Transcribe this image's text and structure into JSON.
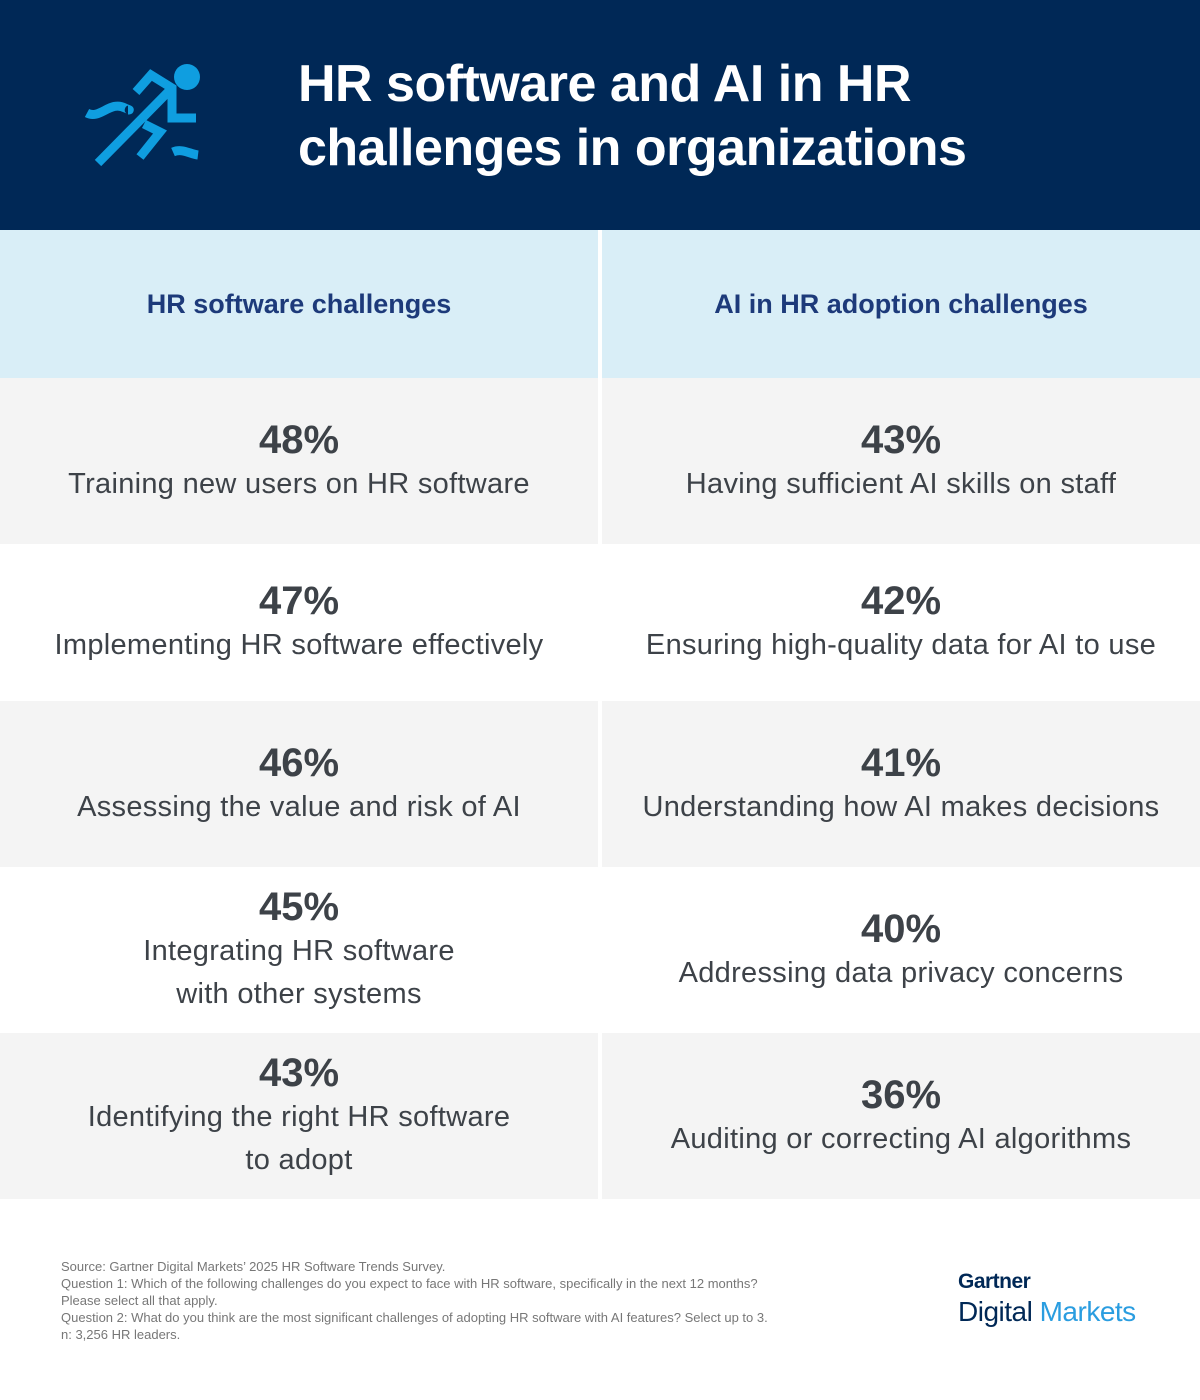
{
  "header": {
    "title_line1": "HR software and AI in HR",
    "title_line2": "challenges in organizations",
    "icon": "running-person-icon",
    "bg": "#002856",
    "accent": "#0f9ee0"
  },
  "columns": [
    "HR software challenges",
    "AI in HR adoption challenges"
  ],
  "rows": [
    [
      {
        "pct": "48%",
        "label": "Training new users on HR software"
      },
      {
        "pct": "43%",
        "label": "Having sufficient AI skills on staff"
      }
    ],
    [
      {
        "pct": "47%",
        "label": "Implementing HR software effectively"
      },
      {
        "pct": "42%",
        "label": "Ensuring high-quality data for AI to use"
      }
    ],
    [
      {
        "pct": "46%",
        "label": "Assessing the value and risk of AI"
      },
      {
        "pct": "41%",
        "label": "Understanding how AI makes decisions"
      }
    ],
    [
      {
        "pct": "45%",
        "label": "Integrating HR software\nwith other systems"
      },
      {
        "pct": "40%",
        "label": "Addressing data privacy concerns"
      }
    ],
    [
      {
        "pct": "43%",
        "label": "Identifying the right HR software\nto adopt"
      },
      {
        "pct": "36%",
        "label": "Auditing or correcting AI algorithms"
      }
    ]
  ],
  "footer": [
    "Source: Gartner Digital Markets’ 2025 HR Software Trends Survey.",
    "Question 1: Which of the following challenges do you expect to face with HR software, specifically in the next 12 months?",
    "Please select all that apply.",
    "Question 2: What do you think are the most significant challenges of adopting HR software with AI features? Select up to 3.",
    "n: 3,256 HR leaders."
  ],
  "logo": {
    "line1": "Gartner",
    "line2a": "Digital",
    "line2b": "Markets"
  }
}
